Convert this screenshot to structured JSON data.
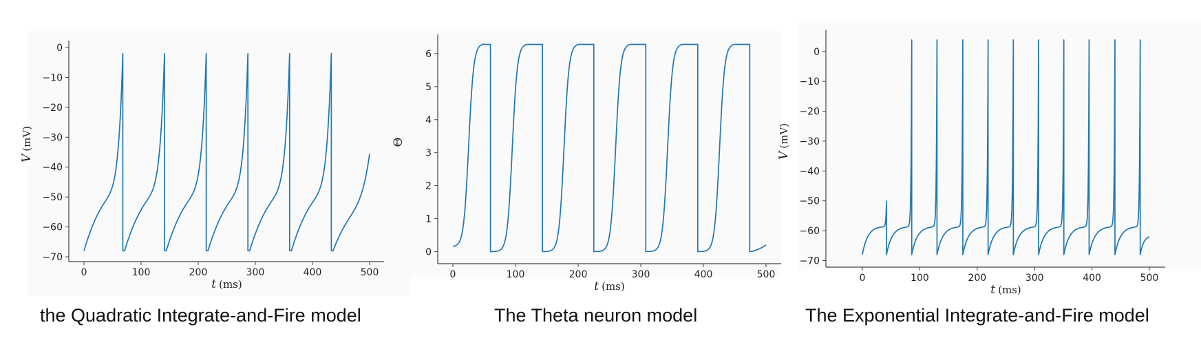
{
  "chart_data": [
    {
      "type": "line",
      "caption": "the Quadratic Integrate-and-Fire model",
      "xlabel_symbol": "t",
      "xlabel_unit": "(ms)",
      "ylabel_symbol": "V",
      "ylabel_unit": "(mV)",
      "xlim": [
        0,
        500
      ],
      "ylim": [
        -70,
        0
      ],
      "xticks": [
        0,
        100,
        200,
        300,
        400,
        500
      ],
      "yticks": [
        0,
        -10,
        -20,
        -30,
        -40,
        -50,
        -60,
        -70
      ],
      "color": "#1f77b4",
      "model": "qif",
      "spike_times": [
        68,
        141,
        214,
        287,
        360,
        433
      ],
      "spike_peak": -2,
      "reset": -68,
      "end_value": -35.5
    },
    {
      "type": "line",
      "caption": "The Theta neuron model",
      "xlabel_symbol": "t",
      "xlabel_unit": "(ms)",
      "ylabel_symbol": "Θ",
      "ylabel_unit": "",
      "xlim": [
        0,
        500
      ],
      "ylim": [
        0,
        6.28
      ],
      "xticks": [
        0,
        100,
        200,
        300,
        400,
        500
      ],
      "yticks": [
        0,
        1,
        2,
        3,
        4,
        5,
        6
      ],
      "color": "#1f77b4",
      "model": "theta",
      "spike_times": [
        60,
        143,
        225,
        308,
        391,
        474
      ],
      "start_value": 0.15,
      "end_value": 0.2
    },
    {
      "type": "line",
      "caption": "The Exponential Integrate-and-Fire model",
      "xlabel_symbol": "t",
      "xlabel_unit": "(ms)",
      "ylabel_symbol": "V",
      "ylabel_unit": "(mV)",
      "xlim": [
        0,
        500
      ],
      "ylim": [
        -70,
        4
      ],
      "xticks": [
        0,
        100,
        200,
        300,
        400,
        500
      ],
      "yticks": [
        0,
        -10,
        -20,
        -30,
        -40,
        -50,
        -60,
        -70
      ],
      "color": "#1f77b4",
      "model": "eif",
      "first_spike": {
        "time": 42,
        "peak": -50
      },
      "spike_times": [
        86,
        130,
        175,
        219,
        263,
        307,
        351,
        395,
        440,
        484
      ],
      "spike_peak": 4,
      "reset": -68,
      "end_value": -62
    }
  ]
}
